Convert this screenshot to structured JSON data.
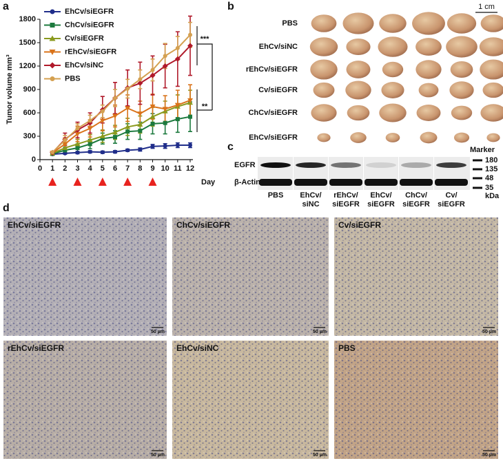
{
  "panel_labels": [
    "a",
    "b",
    "c",
    "d"
  ],
  "chart_data": {
    "type": "line",
    "ylabel": "Tumor volume mm³",
    "xlabel": "Day",
    "x": [
      1,
      2,
      3,
      4,
      5,
      6,
      7,
      8,
      9,
      10,
      11,
      12
    ],
    "xlim": [
      0,
      12
    ],
    "xticks": [
      0,
      1,
      2,
      3,
      4,
      5,
      6,
      7,
      8,
      9,
      10,
      11,
      12
    ],
    "ylim": [
      0,
      1800
    ],
    "yticks": [
      0,
      300,
      600,
      900,
      1200,
      1500,
      1800
    ],
    "series": [
      {
        "name": "EhCv/siEGFR",
        "color": "#1f2d8a",
        "marker": "circle",
        "values": [
          70,
          80,
          90,
          100,
          95,
          100,
          120,
          130,
          170,
          175,
          185,
          185
        ],
        "errors": [
          15,
          10,
          15,
          15,
          15,
          15,
          15,
          20,
          25,
          30,
          30,
          30
        ]
      },
      {
        "name": "ChCv/siEGFR",
        "color": "#1c7a3e",
        "marker": "square",
        "values": [
          75,
          120,
          150,
          200,
          270,
          290,
          360,
          370,
          460,
          470,
          520,
          550
        ],
        "errors": [
          10,
          40,
          50,
          60,
          70,
          80,
          100,
          110,
          130,
          140,
          170,
          190
        ]
      },
      {
        "name": "Cv/siEGFR",
        "color": "#8a9a1e",
        "marker": "triangle-up",
        "values": [
          80,
          150,
          200,
          250,
          300,
          350,
          420,
          450,
          550,
          620,
          680,
          730
        ],
        "errors": [
          10,
          50,
          60,
          70,
          80,
          90,
          110,
          110,
          120,
          130,
          150,
          160
        ]
      },
      {
        "name": "rEhCv/siEGFR",
        "color": "#d9731a",
        "marker": "triangle-down",
        "values": [
          85,
          200,
          330,
          400,
          500,
          560,
          660,
          590,
          680,
          650,
          700,
          760
        ],
        "errors": [
          10,
          80,
          100,
          110,
          130,
          140,
          170,
          160,
          160,
          170,
          190,
          200
        ]
      },
      {
        "name": "EhCv/siNC",
        "color": "#b0192a",
        "marker": "diamond",
        "values": [
          90,
          260,
          380,
          470,
          640,
          790,
          920,
          980,
          1080,
          1200,
          1290,
          1460
        ],
        "errors": [
          10,
          80,
          100,
          130,
          170,
          200,
          230,
          270,
          250,
          280,
          350,
          380
        ]
      },
      {
        "name": "PBS",
        "color": "#d4a050",
        "marker": "circle",
        "values": [
          95,
          250,
          400,
          500,
          620,
          790,
          910,
          1030,
          1150,
          1330,
          1430,
          1600
        ],
        "errors": [
          10,
          60,
          60,
          70,
          80,
          110,
          120,
          120,
          140,
          160,
          150,
          160
        ]
      }
    ],
    "treatment_days": [
      1,
      3,
      5,
      7,
      9
    ],
    "treatment_color": "#e8231f",
    "annotations": [
      "***",
      "**"
    ]
  },
  "tumor_photos": {
    "scale": "1 cm",
    "rows": [
      "PBS",
      "EhCv/siNC",
      "rEhCv/siEGFR",
      "Cv/siEGFR",
      "ChCv/siEGFR",
      "EhCv/siEGFR"
    ]
  },
  "western_blot": {
    "bands": [
      "EGFR",
      "β-Actin"
    ],
    "lanes": [
      [
        "PBS"
      ],
      [
        "EhCv/",
        "siNC"
      ],
      [
        "rEhCv/",
        "siEGFR"
      ],
      [
        "EhCv/",
        "siEGFR"
      ],
      [
        "ChCv/",
        "siEGFR"
      ],
      [
        "Cv/",
        "siEGFR"
      ]
    ],
    "marker_title": "Marker",
    "markers": [
      180,
      135,
      48,
      35
    ],
    "unit": "kDa"
  },
  "ihc": {
    "images": [
      {
        "label": "EhCv/siEGFR",
        "scale": "50 µm"
      },
      {
        "label": "ChCv/siEGFR",
        "scale": "50 µm"
      },
      {
        "label": "Cv/siEGFR",
        "scale": "50 µm"
      },
      {
        "label": "rEhCv/siEGFR",
        "scale": "50 µm"
      },
      {
        "label": "EhCv/siNC",
        "scale": "50 µm"
      },
      {
        "label": "PBS",
        "scale": "50 µm"
      }
    ]
  }
}
